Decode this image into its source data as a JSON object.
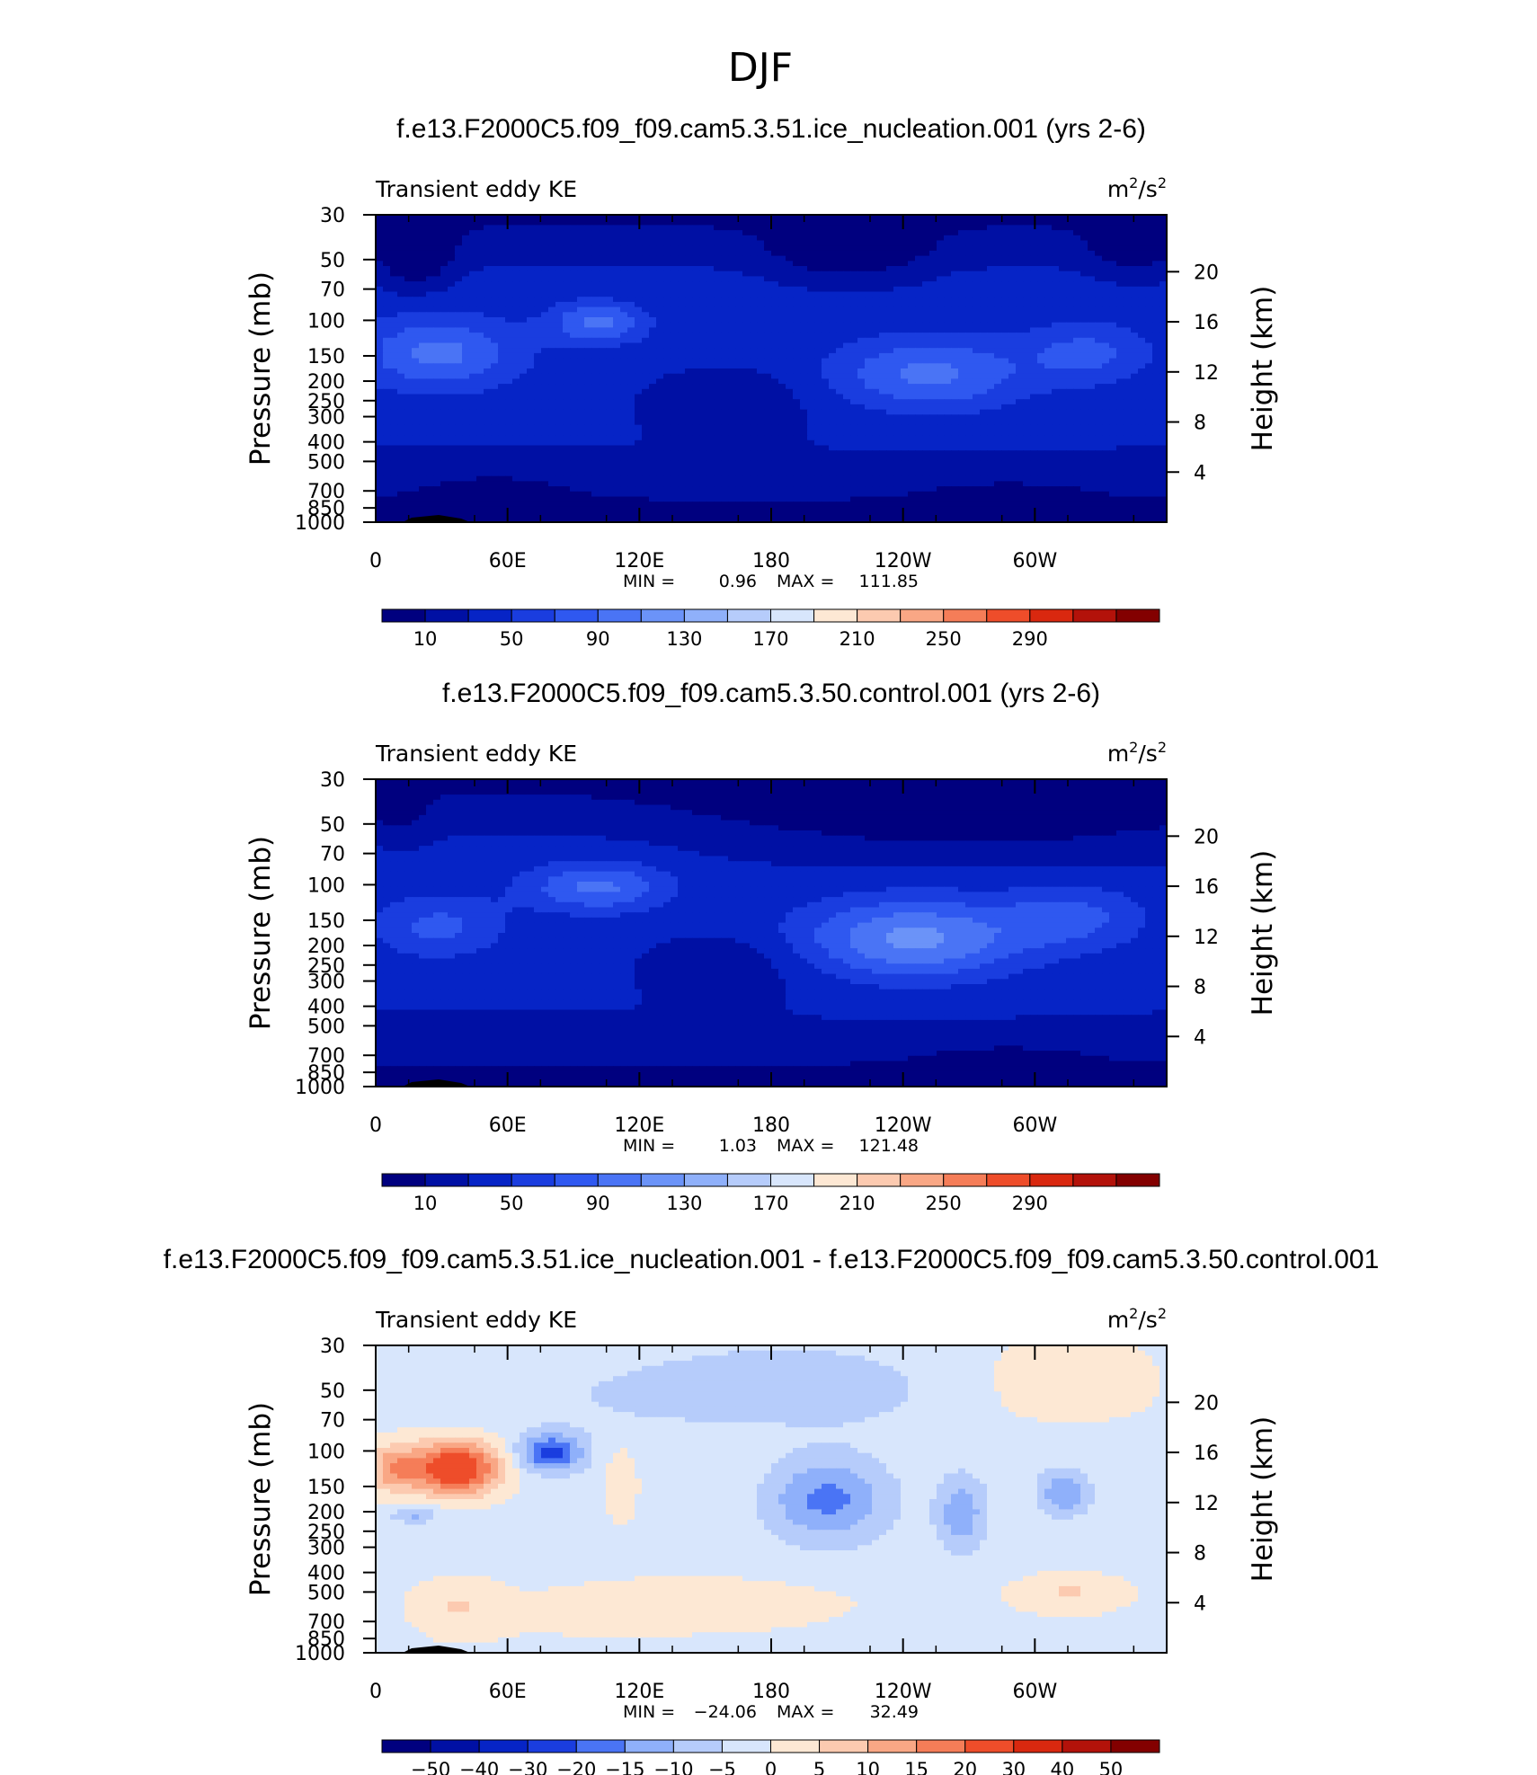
{
  "figure": {
    "title": "DJF"
  },
  "chart_data": [
    {
      "type": "heatmap",
      "title": "f.e13.F2000C5.f09_f09.cam5.3.51.ice_nucleation.001 (yrs 2-6)",
      "subtitle": "Transient eddy KE",
      "units_base": "m",
      "units_sup1": "2",
      "units_sep": "/s",
      "units_sup2": "2",
      "ylabel": "Pressure (mb)",
      "y2label": "Height (km)",
      "x_ticks": [
        "0",
        "60E",
        "120E",
        "180",
        "120W",
        "60W"
      ],
      "y_ticks": [
        30,
        50,
        70,
        100,
        150,
        200,
        250,
        300,
        400,
        500,
        700,
        850,
        1000
      ],
      "y2_ticks": [
        20,
        16,
        12,
        8,
        4
      ],
      "min_label": "MIN =",
      "min_value": "0.96",
      "max_label": "MAX =",
      "max_value": "111.85",
      "colorbar_labels": [
        "10",
        "50",
        "90",
        "130",
        "170",
        "210",
        "250",
        "290"
      ],
      "colorbar_levels": [
        10,
        30,
        50,
        70,
        90,
        110,
        130,
        150,
        170,
        190,
        210,
        230,
        250,
        270,
        290
      ],
      "blobs": [
        {
          "x": 0.05,
          "y": 0.12,
          "rx": 0.04,
          "ry": 0.1,
          "v": -3
        },
        {
          "x": 0.6,
          "y": 0.1,
          "rx": 0.08,
          "ry": 0.09,
          "v": -3
        },
        {
          "x": 0.96,
          "y": 0.1,
          "rx": 0.05,
          "ry": 0.08,
          "v": -2
        },
        {
          "x": 0.08,
          "y": 0.45,
          "rx": 0.1,
          "ry": 0.12,
          "v": 3
        },
        {
          "x": 0.28,
          "y": 0.35,
          "rx": 0.06,
          "ry": 0.07,
          "v": 3
        },
        {
          "x": 0.7,
          "y": 0.52,
          "rx": 0.12,
          "ry": 0.12,
          "v": 3
        },
        {
          "x": 0.9,
          "y": 0.45,
          "rx": 0.08,
          "ry": 0.1,
          "v": 2
        },
        {
          "x": 0.45,
          "y": 0.6,
          "rx": 0.1,
          "ry": 0.1,
          "v": -1
        },
        {
          "x": 0.15,
          "y": 0.9,
          "rx": 0.1,
          "ry": 0.08,
          "v": -1
        },
        {
          "x": 0.8,
          "y": 0.92,
          "rx": 0.1,
          "ry": 0.06,
          "v": -1
        }
      ]
    },
    {
      "type": "heatmap",
      "title": "f.e13.F2000C5.f09_f09.cam5.3.50.control.001 (yrs 2-6)",
      "subtitle": "Transient eddy KE",
      "units_base": "m",
      "units_sup1": "2",
      "units_sep": "/s",
      "units_sup2": "2",
      "ylabel": "Pressure (mb)",
      "y2label": "Height (km)",
      "x_ticks": [
        "0",
        "60E",
        "120E",
        "180",
        "120W",
        "60W"
      ],
      "y_ticks": [
        30,
        50,
        70,
        100,
        150,
        200,
        250,
        300,
        400,
        500,
        700,
        850,
        1000
      ],
      "y2_ticks": [
        20,
        16,
        12,
        8,
        4
      ],
      "min_label": "MIN =",
      "min_value": "1.03",
      "max_label": "MAX =",
      "max_value": "121.48",
      "colorbar_labels": [
        "10",
        "50",
        "90",
        "130",
        "170",
        "210",
        "250",
        "290"
      ],
      "colorbar_levels": [
        10,
        30,
        50,
        70,
        90,
        110,
        130,
        150,
        170,
        190,
        210,
        230,
        250,
        270,
        290
      ],
      "blobs": [
        {
          "x": 0.75,
          "y": 0.1,
          "rx": 0.3,
          "ry": 0.14,
          "v": -2
        },
        {
          "x": 0.03,
          "y": 0.12,
          "rx": 0.04,
          "ry": 0.08,
          "v": -1
        },
        {
          "x": 0.08,
          "y": 0.48,
          "rx": 0.08,
          "ry": 0.1,
          "v": 2
        },
        {
          "x": 0.28,
          "y": 0.35,
          "rx": 0.09,
          "ry": 0.08,
          "v": 3
        },
        {
          "x": 0.68,
          "y": 0.52,
          "rx": 0.14,
          "ry": 0.13,
          "v": 4
        },
        {
          "x": 0.88,
          "y": 0.45,
          "rx": 0.09,
          "ry": 0.1,
          "v": 2
        },
        {
          "x": 0.45,
          "y": 0.6,
          "rx": 0.1,
          "ry": 0.1,
          "v": -1
        },
        {
          "x": 0.8,
          "y": 0.92,
          "rx": 0.1,
          "ry": 0.06,
          "v": -1
        }
      ]
    },
    {
      "type": "heatmap",
      "title": "f.e13.F2000C5.f09_f09.cam5.3.51.ice_nucleation.001 - f.e13.F2000C5.f09_f09.cam5.3.50.control.001",
      "subtitle": "Transient eddy KE",
      "units_base": "m",
      "units_sup1": "2",
      "units_sep": "/s",
      "units_sup2": "2",
      "ylabel": "Pressure (mb)",
      "y2label": "Height (km)",
      "x_ticks": [
        "0",
        "60E",
        "120E",
        "180",
        "120W",
        "60W"
      ],
      "y_ticks": [
        30,
        50,
        70,
        100,
        150,
        200,
        250,
        300,
        400,
        500,
        700,
        850,
        1000
      ],
      "y2_ticks": [
        20,
        16,
        12,
        8,
        4
      ],
      "min_label": "MIN =",
      "min_value": "−24.06",
      "max_label": "MAX =",
      "max_value": "32.49",
      "colorbar_labels": [
        "−50",
        "−40",
        "−30",
        "−20",
        "−15",
        "−10",
        "−5",
        "0",
        "5",
        "10",
        "15",
        "20",
        "30",
        "40",
        "50"
      ],
      "colorbar_levels": [
        -50,
        -40,
        -30,
        -20,
        -15,
        -10,
        -5,
        0,
        5,
        10,
        15,
        20,
        30,
        40,
        50
      ],
      "blobs": [
        {
          "x": 0.1,
          "y": 0.4,
          "rx": 0.06,
          "ry": 0.09,
          "v": 30
        },
        {
          "x": 0.02,
          "y": 0.4,
          "rx": 0.03,
          "ry": 0.08,
          "v": 12
        },
        {
          "x": 0.22,
          "y": 0.35,
          "rx": 0.04,
          "ry": 0.06,
          "v": -20
        },
        {
          "x": 0.31,
          "y": 0.45,
          "rx": 0.02,
          "ry": 0.12,
          "v": 6
        },
        {
          "x": 0.57,
          "y": 0.5,
          "rx": 0.08,
          "ry": 0.14,
          "v": -16
        },
        {
          "x": 0.74,
          "y": 0.55,
          "rx": 0.03,
          "ry": 0.12,
          "v": -12
        },
        {
          "x": 0.87,
          "y": 0.48,
          "rx": 0.03,
          "ry": 0.07,
          "v": -12
        },
        {
          "x": 0.05,
          "y": 0.55,
          "rx": 0.03,
          "ry": 0.03,
          "v": -10
        },
        {
          "x": 0.45,
          "y": 0.85,
          "rx": 0.18,
          "ry": 0.1,
          "v": 5
        },
        {
          "x": 0.5,
          "y": 0.15,
          "rx": 0.35,
          "ry": 0.14,
          "v": -6
        },
        {
          "x": 0.85,
          "y": 0.15,
          "rx": 0.15,
          "ry": 0.14,
          "v": 5
        },
        {
          "x": 0.1,
          "y": 0.85,
          "rx": 0.05,
          "ry": 0.08,
          "v": 6
        },
        {
          "x": 0.88,
          "y": 0.8,
          "rx": 0.06,
          "ry": 0.05,
          "v": 6
        }
      ]
    }
  ],
  "colors": {
    "abs_palette": [
      "#00007f",
      "#0010a4",
      "#0624c6",
      "#1a3ddf",
      "#2f58f0",
      "#4a74f5",
      "#6b93f8",
      "#8fb0fa",
      "#b6ccfb",
      "#d8e6fc",
      "#fde8d4",
      "#fccab0",
      "#f9a785",
      "#f57d58",
      "#ee4d2a",
      "#d9280f",
      "#b3120a",
      "#830000"
    ],
    "diff_palette": [
      "#00007f",
      "#0010a4",
      "#0624c6",
      "#1a3ddf",
      "#4a74f5",
      "#8fb0fa",
      "#b6ccfb",
      "#d8e6fc",
      "#fde8d4",
      "#fccab0",
      "#f9a785",
      "#f57d58",
      "#ee4d2a",
      "#d9280f",
      "#b3120a",
      "#830000"
    ]
  }
}
